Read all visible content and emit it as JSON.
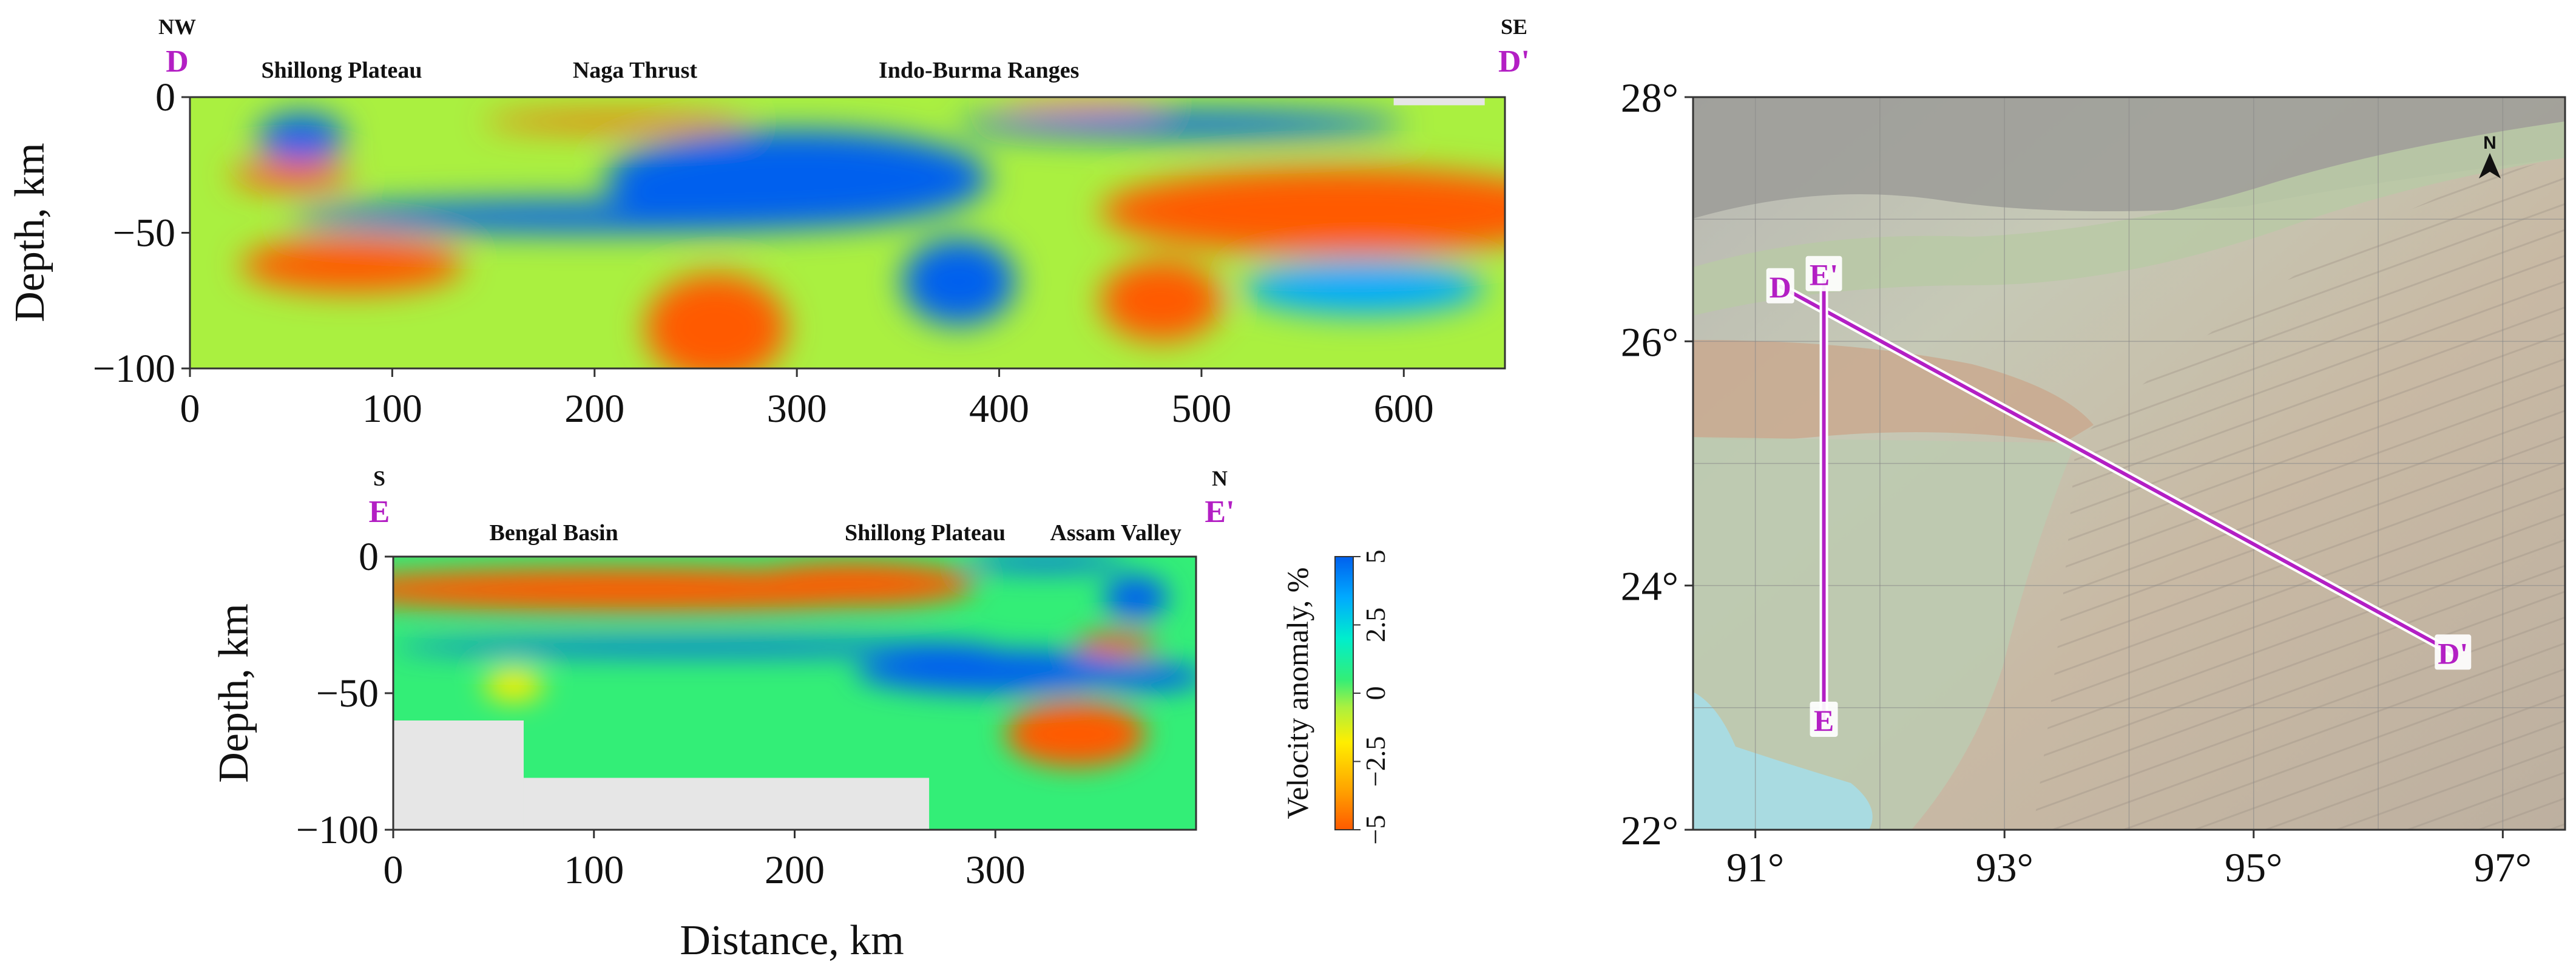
{
  "colors": {
    "profile_line": "#b31fc4",
    "nodata": "#e6e6e6",
    "anomaly_scale": [
      "#ff5a00",
      "#ffa500",
      "#ffee00",
      "#aaf040",
      "#33ee77",
      "#00eecc",
      "#00aaff",
      "#0060ee"
    ]
  },
  "chart_data": [
    {
      "type": "heatmap",
      "id": "profile-DD",
      "title": "",
      "xlabel": "",
      "ylabel": "Depth, km",
      "xlim": [
        0,
        650
      ],
      "ylim": [
        -100,
        0
      ],
      "x_ticks": [
        "0",
        "100",
        "200",
        "300",
        "400",
        "500",
        "600"
      ],
      "y_ticks": [
        "0",
        "−50",
        "−100"
      ],
      "start_label": "D",
      "end_label": "D'",
      "start_direction": "NW",
      "end_direction": "SE",
      "regions": [
        {
          "name": "Shillong Plateau",
          "x": 75
        },
        {
          "name": "Naga Thrust",
          "x": 220
        },
        {
          "name": "Indo-Burma Ranges",
          "x": 390
        }
      ],
      "background_anomaly": -0.5,
      "anomalies": [
        {
          "x": 55,
          "depth": -15,
          "value": 4.5,
          "rx": 22,
          "ry": 9
        },
        {
          "x": 50,
          "depth": -29,
          "value": -4.5,
          "rx": 30,
          "ry": 5
        },
        {
          "x": 80,
          "depth": -62,
          "value": -4.5,
          "rx": 55,
          "ry": 10
        },
        {
          "x": 210,
          "depth": -9,
          "value": -4.5,
          "rx": 65,
          "ry": 3
        },
        {
          "x": 200,
          "depth": -44,
          "value": 4.8,
          "rx": 150,
          "ry": 6
        },
        {
          "x": 300,
          "depth": -30,
          "value": 4.8,
          "rx": 95,
          "ry": 18
        },
        {
          "x": 380,
          "depth": -68,
          "value": 4.8,
          "rx": 28,
          "ry": 16
        },
        {
          "x": 260,
          "depth": -85,
          "value": -4.8,
          "rx": 35,
          "ry": 20
        },
        {
          "x": 490,
          "depth": -10,
          "value": 4.5,
          "rx": 110,
          "ry": 5
        },
        {
          "x": 570,
          "depth": -42,
          "value": -4.8,
          "rx": 120,
          "ry": 16
        },
        {
          "x": 480,
          "depth": -75,
          "value": -4.5,
          "rx": 30,
          "ry": 15
        },
        {
          "x": 440,
          "depth": -2,
          "value": -4,
          "rx": 40,
          "ry": 3
        },
        {
          "x": 580,
          "depth": -70,
          "value": 3.5,
          "rx": 60,
          "ry": 10
        }
      ],
      "nodata_boxes": [
        {
          "x0": 595,
          "x1": 640,
          "d0": 0,
          "d1": -3
        }
      ]
    },
    {
      "type": "heatmap",
      "id": "profile-EE",
      "title": "",
      "xlabel": "Distance, km",
      "ylabel": "Depth, km",
      "xlim": [
        0,
        400
      ],
      "ylim": [
        -100,
        0
      ],
      "x_ticks": [
        "0",
        "100",
        "200",
        "300"
      ],
      "y_ticks": [
        "0",
        "−50",
        "−100"
      ],
      "start_label": "E",
      "end_label": "E'",
      "start_direction": "S",
      "end_direction": "N",
      "regions": [
        {
          "name": "Bengal Basin",
          "x": 80
        },
        {
          "name": "Shillong Plateau",
          "x": 265
        },
        {
          "name": "Assam Valley",
          "x": 360
        }
      ],
      "background_anomaly": 0.8,
      "anomalies": [
        {
          "x": 120,
          "depth": -12,
          "value": -4.8,
          "rx": 160,
          "ry": 8
        },
        {
          "x": 230,
          "depth": -10,
          "value": -4.6,
          "rx": 60,
          "ry": 8
        },
        {
          "x": 150,
          "depth": -33,
          "value": 4.5,
          "rx": 150,
          "ry": 3
        },
        {
          "x": 300,
          "depth": -42,
          "value": 4.8,
          "rx": 70,
          "ry": 8
        },
        {
          "x": 375,
          "depth": -44,
          "value": 4.8,
          "rx": 30,
          "ry": 5
        },
        {
          "x": 360,
          "depth": -32,
          "value": -4.8,
          "rx": 20,
          "ry": 4
        },
        {
          "x": 370,
          "depth": -15,
          "value": 4.5,
          "rx": 16,
          "ry": 8
        },
        {
          "x": 340,
          "depth": -65,
          "value": -4.8,
          "rx": 35,
          "ry": 12
        },
        {
          "x": 60,
          "depth": -47,
          "value": -1.5,
          "rx": 15,
          "ry": 6
        },
        {
          "x": 325,
          "depth": -2,
          "value": 4.5,
          "rx": 40,
          "ry": 3
        }
      ],
      "nodata_boxes": [
        {
          "x0": 0,
          "x1": 65,
          "d0": -60,
          "d1": -100
        },
        {
          "x0": 65,
          "x1": 267,
          "d0": -81,
          "d1": -100
        }
      ]
    },
    {
      "type": "heatmap",
      "id": "colorbar",
      "title": "",
      "label": "Velocity anomaly, %",
      "range": [
        -5,
        5
      ],
      "ticks": [
        "5",
        "2.5",
        "0",
        "−2.5",
        "−5"
      ]
    },
    {
      "type": "scatter",
      "id": "location-map",
      "title": "",
      "xlim": [
        90.5,
        97.5
      ],
      "ylim": [
        22,
        28
      ],
      "x_ticks": [
        {
          "value": 91,
          "label": "91°"
        },
        {
          "value": 93,
          "label": "93°"
        },
        {
          "value": 95,
          "label": "95°"
        },
        {
          "value": 97,
          "label": "97°"
        }
      ],
      "y_ticks": [
        {
          "value": 22,
          "label": "22°"
        },
        {
          "value": 24,
          "label": "24°"
        },
        {
          "value": 26,
          "label": "26°"
        },
        {
          "value": 28,
          "label": "28°"
        }
      ],
      "north_label": "N",
      "profiles": [
        {
          "start": "D",
          "end": "D'",
          "lon0": 91.2,
          "lat0": 26.45,
          "lon1": 96.6,
          "lat1": 23.45
        },
        {
          "start": "E",
          "end": "E'",
          "lon0": 91.55,
          "lat0": 22.9,
          "lon1": 91.55,
          "lat1": 26.55
        }
      ]
    }
  ]
}
